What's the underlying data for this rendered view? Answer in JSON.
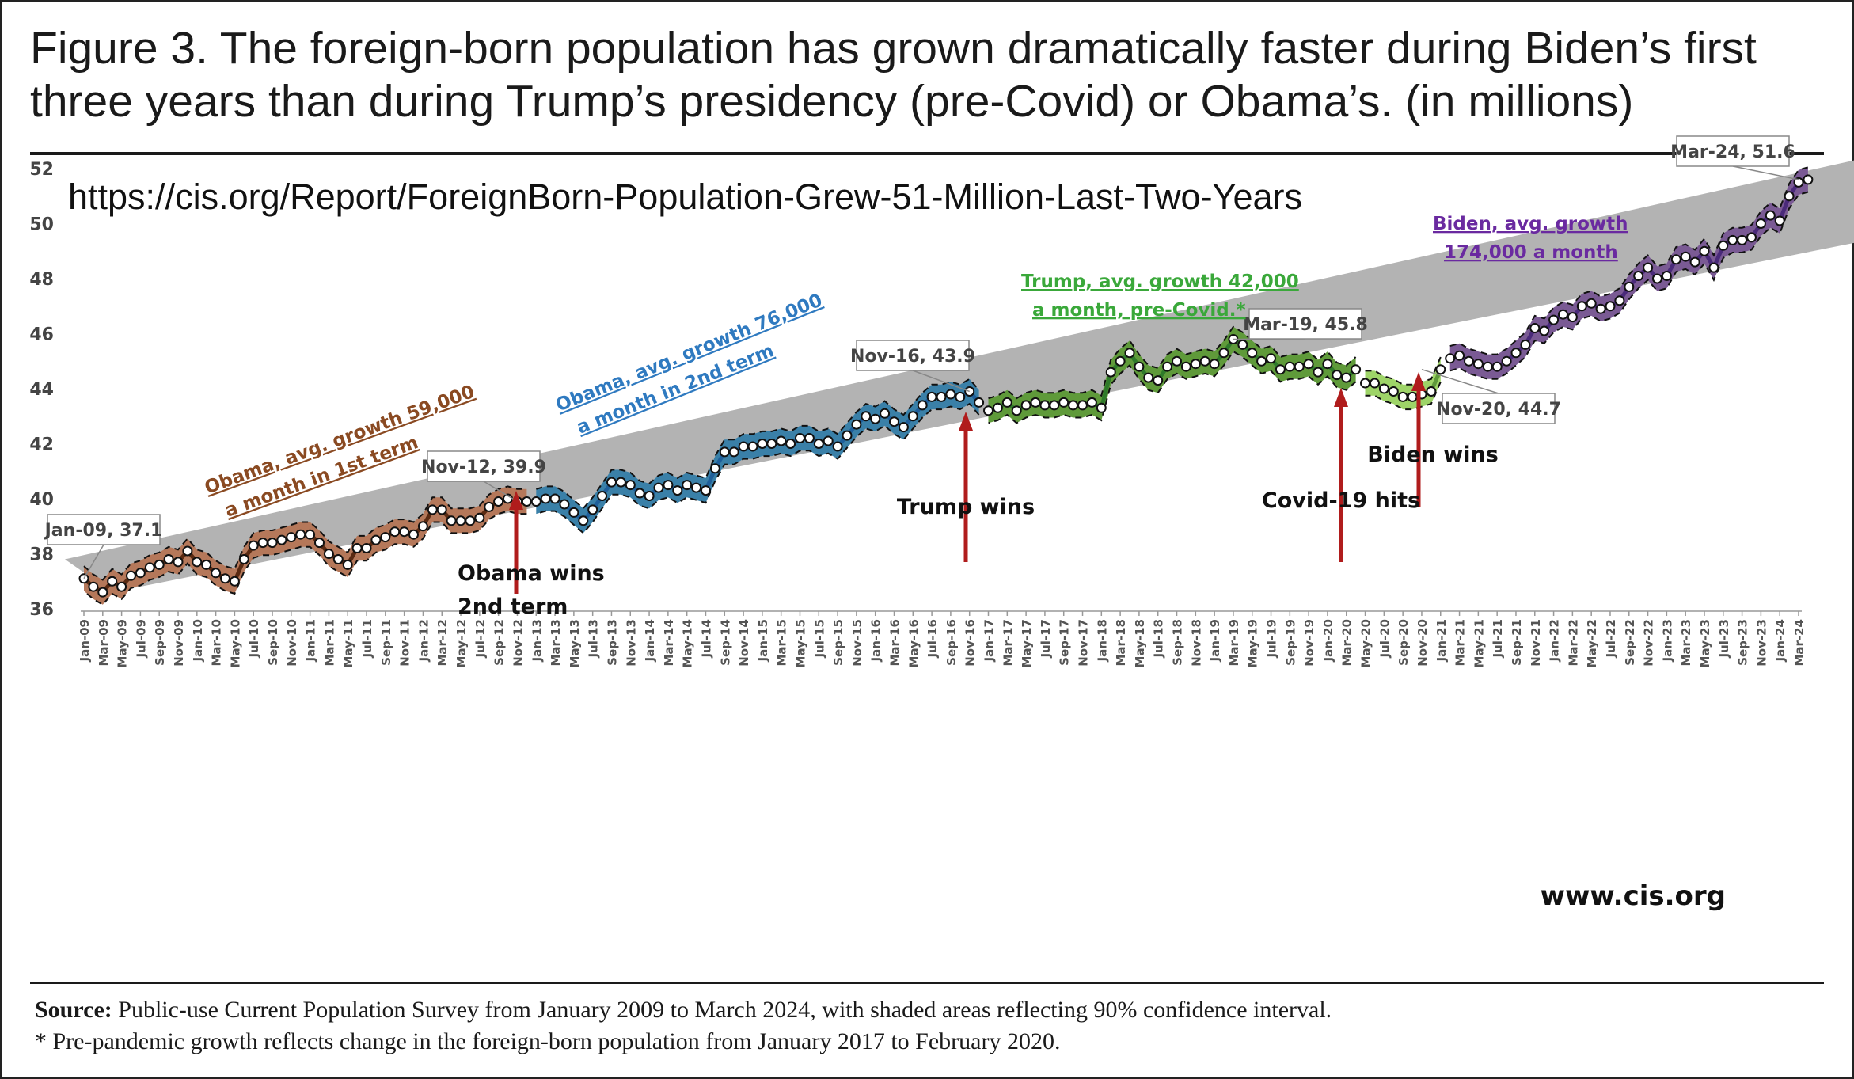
{
  "figure": {
    "title": "Figure 3. The foreign-born population has grown dramatically faster during Biden’s first three years than during Trump’s presidency (pre-Covid) or Obama’s. (in millions)",
    "url": "https://cis.org/Report/ForeignBorn-Population-Grew-51-Million-Last-Two-Years",
    "watermark": "www.cis.org",
    "source_label": "Source:",
    "source_text": "Public-use Current Population Survey from January 2009 to March 2024, with shaded areas reflecting 90% confidence interval.",
    "footnote": "* Pre-pandemic growth reflects change in the foreign-born population from January 2017 to February 2020."
  },
  "chart_data": {
    "type": "line",
    "title": "Figure 3. The foreign-born population has grown dramatically faster during Biden’s first three years than during Trump’s presidency (pre-Covid) or Obama’s. (in millions)",
    "xlabel": "",
    "ylabel": "",
    "ylim": [
      36,
      52
    ],
    "yticks": [
      36,
      38,
      40,
      42,
      44,
      46,
      48,
      50,
      52
    ],
    "x_start": "Jan-09",
    "x_end": "Mar-24",
    "x_tick_labels": [
      "Jan-09",
      "Mar-09",
      "May-09",
      "Jul-09",
      "Sep-09",
      "Nov-09",
      "Jan-10",
      "Mar-10",
      "May-10",
      "Jul-10",
      "Sep-10",
      "Nov-10",
      "Jan-11",
      "Mar-11",
      "May-11",
      "Jul-11",
      "Sep-11",
      "Nov-11",
      "Jan-12",
      "Mar-12",
      "May-12",
      "Jul-12",
      "Sep-12",
      "Nov-12",
      "Jan-13",
      "Mar-13",
      "May-13",
      "Jul-13",
      "Sep-13",
      "Nov-13",
      "Jan-14",
      "Mar-14",
      "May-14",
      "Jul-14",
      "Sep-14",
      "Nov-14",
      "Jan-15",
      "Mar-15",
      "May-15",
      "Jul-15",
      "Sep-15",
      "Nov-15",
      "Jan-16",
      "Mar-16",
      "May-16",
      "Jul-16",
      "Sep-16",
      "Nov-16",
      "Jan-17",
      "Mar-17",
      "May-17",
      "Jul-17",
      "Sep-17",
      "Nov-17",
      "Jan-18",
      "Mar-18",
      "May-18",
      "Jul-18",
      "Sep-18",
      "Nov-18",
      "Jan-19",
      "Mar-19",
      "May-19",
      "Jul-19",
      "Sep-19",
      "Nov-19",
      "Jan-20",
      "Mar-20",
      "May-20",
      "Jul-20",
      "Sep-20",
      "Nov-20",
      "Jan-21",
      "Mar-21",
      "May-21",
      "Jul-21",
      "Sep-21",
      "Nov-21",
      "Jan-22",
      "Mar-22",
      "May-22",
      "Jul-22",
      "Sep-22",
      "Nov-22",
      "Jan-23",
      "Mar-23",
      "May-23",
      "Jul-23",
      "Sep-23",
      "Nov-23",
      "Jan-24",
      "Mar-24"
    ],
    "trend_band": {
      "start": [
        36.6,
        37.8
      ],
      "end": [
        48.4,
        51.4
      ]
    },
    "ci_halfwidth": 0.45,
    "series": [
      {
        "name": "Obama, avg. growth 59,000 a month in 1st  term",
        "color": "#b5785a",
        "line": "#5a2a12",
        "values": [
          37.1,
          36.8,
          36.6,
          37.0,
          36.8,
          37.2,
          37.3,
          37.5,
          37.6,
          37.8,
          37.7,
          38.1,
          37.7,
          37.6,
          37.3,
          37.1,
          37.0,
          37.8,
          38.3,
          38.4,
          38.4,
          38.5,
          38.6,
          38.7,
          38.7,
          38.4,
          38.0,
          37.8,
          37.6,
          38.2,
          38.2,
          38.5,
          38.6,
          38.8,
          38.8,
          38.7,
          39.0,
          39.6,
          39.6,
          39.2,
          39.2,
          39.2,
          39.3,
          39.7,
          39.9,
          40.0,
          39.9,
          39.9
        ]
      },
      {
        "name": "Obama, avg. growth 76,000 a month in 2nd term",
        "color": "#3a80a8",
        "line": "#1f5f9a",
        "values": [
          39.9,
          40.0,
          40.0,
          39.8,
          39.5,
          39.2,
          39.6,
          40.1,
          40.6,
          40.6,
          40.5,
          40.2,
          40.1,
          40.4,
          40.5,
          40.3,
          40.5,
          40.4,
          40.3,
          41.1,
          41.7,
          41.7,
          41.9,
          41.9,
          42.0,
          42.0,
          42.1,
          42.0,
          42.2,
          42.2,
          42.0,
          42.1,
          41.9,
          42.3,
          42.7,
          43.0,
          42.9,
          43.1,
          42.8,
          42.6,
          43.0,
          43.4,
          43.7,
          43.7,
          43.8,
          43.7,
          43.9,
          43.5
        ]
      },
      {
        "name": "Trump, avg. growth 42,000 a month, pre-Covid.*",
        "color": "#5f9a3a",
        "line": "#2f7a2a",
        "values": [
          43.2,
          43.3,
          43.5,
          43.2,
          43.4,
          43.5,
          43.4,
          43.4,
          43.5,
          43.4,
          43.4,
          43.5,
          43.3,
          44.6,
          45.0,
          45.3,
          44.8,
          44.4,
          44.3,
          44.8,
          45.0,
          44.8,
          44.9,
          45.0,
          44.9,
          45.3,
          45.8,
          45.6,
          45.3,
          45.0,
          45.1,
          44.7,
          44.8,
          44.8,
          44.9,
          44.6,
          44.9,
          44.5,
          44.4,
          44.7
        ]
      },
      {
        "name": "Covid",
        "color": "#9ed468",
        "line": "#5f9a3a",
        "values": [
          44.2,
          44.2,
          44.0,
          43.9,
          43.7,
          43.7,
          43.8,
          43.9,
          44.7
        ]
      },
      {
        "name": "Biden, avg. growth 174,000 a month",
        "color": "#7a5a94",
        "line": "#4a2a7a",
        "values": [
          45.1,
          45.2,
          45.0,
          44.9,
          44.8,
          44.8,
          45.0,
          45.3,
          45.6,
          46.2,
          46.1,
          46.5,
          46.7,
          46.6,
          47.0,
          47.1,
          46.9,
          47.0,
          47.2,
          47.7,
          48.1,
          48.4,
          48.0,
          48.1,
          48.7,
          48.8,
          48.6,
          49.0,
          48.4,
          49.2,
          49.4,
          49.4,
          49.5,
          50.0,
          50.3,
          50.1,
          51.0,
          51.5,
          51.6
        ]
      }
    ],
    "point_labels": [
      {
        "text": "Jan-09,  37.1",
        "x": 0,
        "y": 37.1
      },
      {
        "text": "Nov-12,  39.9",
        "x": 46,
        "y": 39.9
      },
      {
        "text": "Nov-16,  43.9",
        "x": 94,
        "y": 43.9
      },
      {
        "text": "Mar-19,  45.8",
        "x": 122,
        "y": 45.8
      },
      {
        "text": "Nov-20,  44.7",
        "x": 142,
        "y": 44.7
      },
      {
        "text": "Mar-24,  51.6",
        "x": 182,
        "y": 51.6
      }
    ],
    "events": [
      {
        "text": "Obama wins",
        "text2": "2nd term",
        "x": 46
      },
      {
        "text": "Trump wins",
        "text2": "",
        "x": 94
      },
      {
        "text": "Covid-19 hits",
        "text2": "",
        "x": 134
      },
      {
        "text": "Biden wins",
        "text2": "",
        "x": 142
      }
    ],
    "period_labels": [
      {
        "line1": "Obama, avg. growth 59,000",
        "line2": "a month in 1st  term",
        "color": "#8a4a22"
      },
      {
        "line1": "Obama, avg. growth 76,000",
        "line2": "a month in 2nd term",
        "color": "#2f7ac0"
      },
      {
        "line1": "Trump, avg. growth 42,000",
        "line2": "a month, pre-Covid.*",
        "color": "#3aa83a"
      },
      {
        "line1": "Biden, avg. growth",
        "line2": "174,000 a month",
        "color": "#6a2aa0"
      }
    ],
    "colors": {
      "band": "#b3b3b3",
      "arrow": "#b01c1c"
    }
  }
}
